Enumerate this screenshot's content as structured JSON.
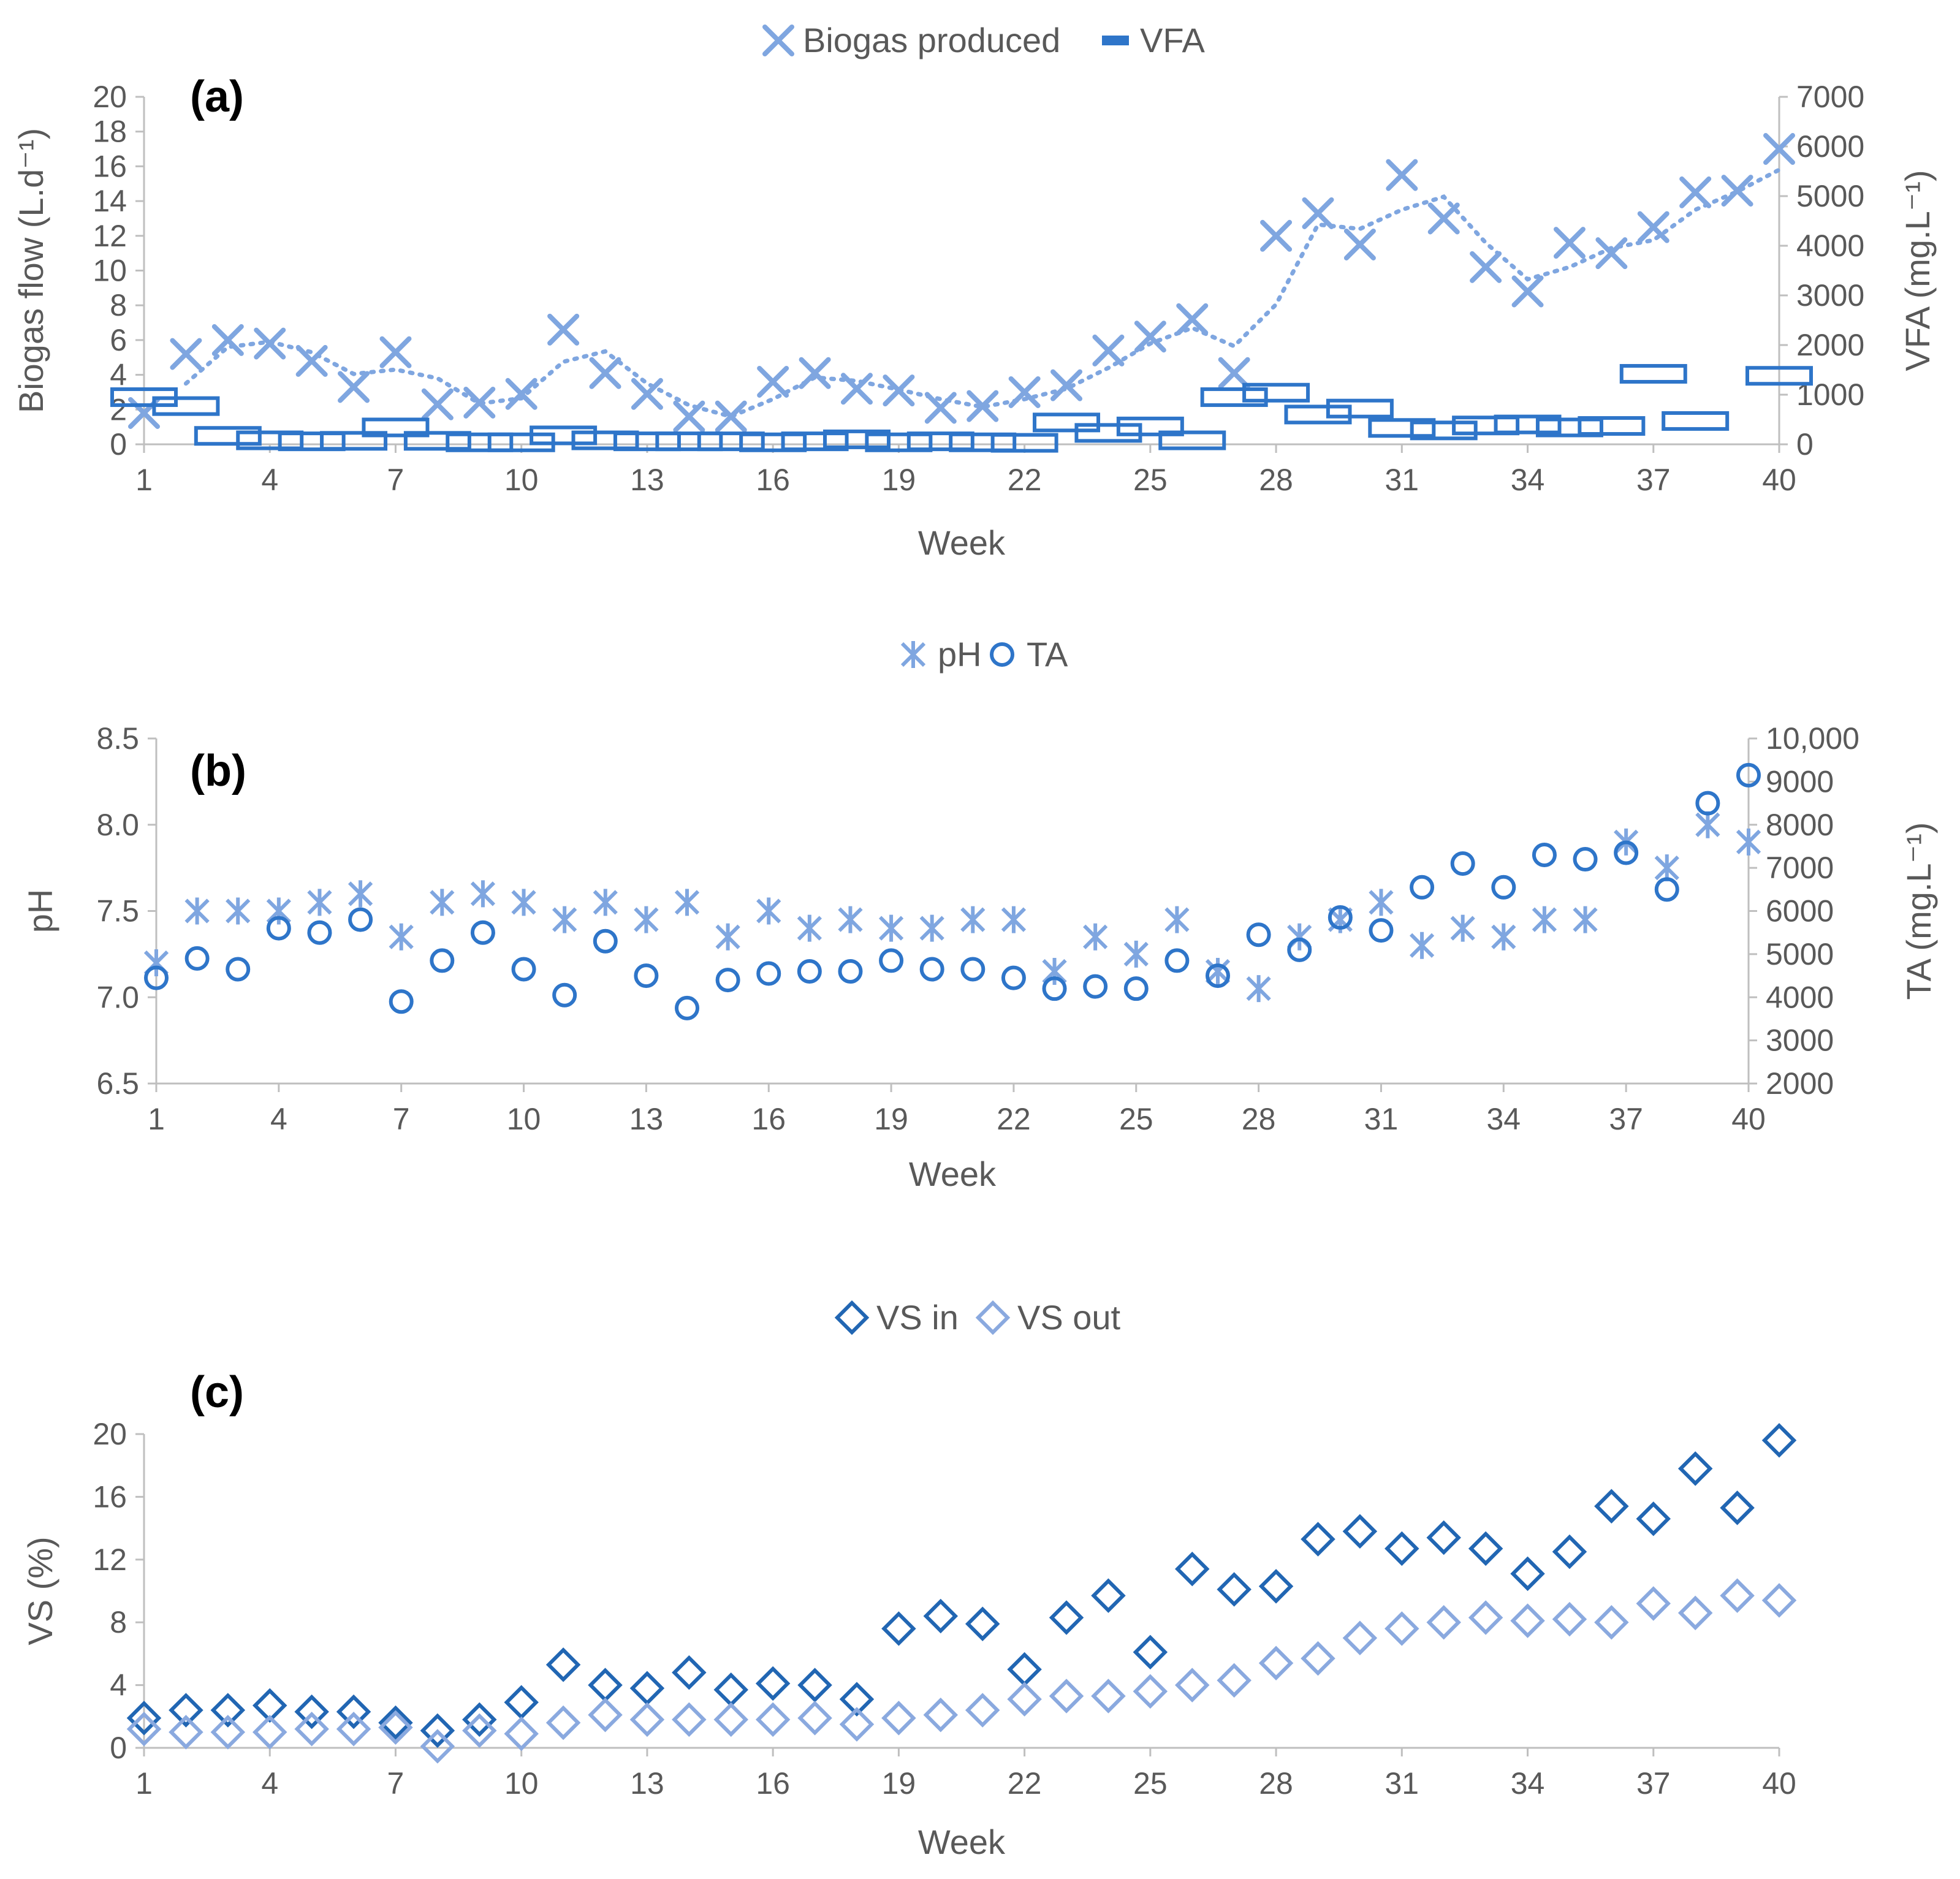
{
  "figure": {
    "colors": {
      "dark": "#2e75c9",
      "light": "#7fa6e0",
      "vs_in": "#2166b3",
      "vs_out": "#8aa9df"
    }
  },
  "chart_data": [
    {
      "type": "scatter",
      "panel_label": "(a)",
      "xlabel": "Week",
      "ylabel": "Biogas flow (L.d⁻¹)",
      "y2label": "VFA (mg.L⁻¹)",
      "xlim": [
        1,
        40
      ],
      "xticks": [
        "1",
        "4",
        "7",
        "10",
        "13",
        "16",
        "19",
        "22",
        "25",
        "28",
        "31",
        "34",
        "37",
        "40"
      ],
      "ylim": [
        0,
        20
      ],
      "yticks": [
        "0",
        "2",
        "4",
        "6",
        "8",
        "10",
        "12",
        "14",
        "16",
        "18",
        "20"
      ],
      "y2lim": [
        0,
        7000
      ],
      "y2ticks": [
        "0",
        "1000",
        "2000",
        "3000",
        "4000",
        "5000",
        "6000",
        "7000"
      ],
      "legend": [
        "Biogas produced",
        "VFA"
      ],
      "trendline": "2-period moving average (dotted) on Biogas produced",
      "series": [
        {
          "name": "Biogas produced",
          "axis": "left",
          "marker": "x",
          "x": [
            1,
            2,
            3,
            4,
            5,
            6,
            7,
            8,
            9,
            10,
            11,
            12,
            13,
            14,
            15,
            16,
            17,
            18,
            19,
            20,
            21,
            22,
            23,
            24,
            25,
            26,
            27,
            28,
            29,
            30,
            31,
            32,
            33,
            34,
            35,
            36,
            37,
            38,
            39,
            40
          ],
          "values": [
            1.8,
            5.2,
            6.0,
            5.8,
            4.8,
            3.3,
            5.3,
            2.3,
            2.4,
            2.9,
            6.6,
            4.1,
            2.9,
            1.6,
            1.6,
            3.6,
            4.1,
            3.2,
            3.1,
            2.1,
            2.2,
            3.0,
            3.4,
            5.4,
            6.2,
            7.2,
            4.1,
            12.0,
            13.3,
            11.5,
            15.5,
            13.0,
            10.2,
            8.8,
            11.6,
            11.0,
            12.5,
            14.5,
            14.6,
            17.0
          ]
        },
        {
          "name": "VFA",
          "axis": "right",
          "marker": "dash",
          "x": [
            1,
            2,
            3,
            4,
            5,
            6,
            7,
            8,
            9,
            10,
            11,
            12,
            13,
            14,
            15,
            16,
            17,
            18,
            19,
            20,
            21,
            22,
            23,
            24,
            25,
            26,
            27,
            28,
            29,
            30,
            31,
            32,
            33,
            34,
            35,
            36,
            37,
            38,
            39,
            40
          ],
          "values": [
            950,
            770,
            170,
            80,
            60,
            70,
            340,
            70,
            40,
            40,
            180,
            80,
            60,
            60,
            60,
            40,
            60,
            100,
            40,
            60,
            40,
            30,
            440,
            230,
            360,
            80,
            950,
            1040,
            600,
            720,
            330,
            280,
            380,
            400,
            340,
            370,
            1420,
            470,
            null,
            1380
          ]
        }
      ]
    },
    {
      "type": "scatter",
      "panel_label": "(b)",
      "xlabel": "Week",
      "ylabel": "pH",
      "y2label": "TA (mg.L⁻¹)",
      "xlim": [
        1,
        40
      ],
      "xticks": [
        "1",
        "4",
        "7",
        "10",
        "13",
        "16",
        "19",
        "22",
        "25",
        "28",
        "31",
        "34",
        "37",
        "40"
      ],
      "ylim": [
        6.5,
        8.5
      ],
      "yticks": [
        "6.5",
        "7.0",
        "7.5",
        "8.0",
        "8.5"
      ],
      "y2lim": [
        2000,
        10000
      ],
      "y2ticks": [
        "2000",
        "3000",
        "4000",
        "5000",
        "6000",
        "7000",
        "8000",
        "9000",
        "10,000"
      ],
      "legend": [
        "pH",
        "TA"
      ],
      "series": [
        {
          "name": "pH",
          "axis": "left",
          "marker": "asterisk",
          "x": [
            1,
            2,
            3,
            4,
            5,
            6,
            7,
            8,
            9,
            10,
            11,
            12,
            13,
            14,
            15,
            16,
            17,
            18,
            19,
            20,
            21,
            22,
            23,
            24,
            25,
            26,
            27,
            28,
            29,
            30,
            31,
            32,
            33,
            34,
            35,
            36,
            37,
            38,
            39,
            40
          ],
          "values": [
            7.2,
            7.5,
            7.5,
            7.5,
            7.55,
            7.6,
            7.35,
            7.55,
            7.6,
            7.55,
            7.45,
            7.55,
            7.45,
            7.55,
            7.35,
            7.5,
            7.4,
            7.45,
            7.4,
            7.4,
            7.45,
            7.45,
            7.15,
            7.35,
            7.25,
            7.45,
            7.15,
            7.05,
            7.35,
            7.45,
            7.55,
            7.3,
            7.4,
            7.35,
            7.45,
            7.45,
            7.9,
            7.75,
            8.0,
            7.9
          ]
        },
        {
          "name": "TA",
          "axis": "right",
          "marker": "circle",
          "x": [
            1,
            2,
            3,
            4,
            5,
            6,
            7,
            8,
            9,
            10,
            11,
            12,
            13,
            14,
            15,
            16,
            17,
            18,
            19,
            20,
            21,
            22,
            23,
            24,
            25,
            26,
            27,
            28,
            29,
            30,
            31,
            32,
            33,
            34,
            35,
            36,
            37,
            38,
            39,
            40
          ],
          "values": [
            4450,
            4900,
            4650,
            5600,
            5500,
            5800,
            3900,
            4850,
            5500,
            4650,
            4050,
            5300,
            4500,
            3750,
            4400,
            4550,
            4600,
            4600,
            4850,
            4650,
            4650,
            4450,
            4200,
            4250,
            4200,
            4850,
            4500,
            5450,
            5100,
            5850,
            5550,
            6550,
            7100,
            6550,
            7300,
            7200,
            7350,
            6500,
            8500,
            9150
          ]
        }
      ]
    },
    {
      "type": "scatter",
      "panel_label": "(c)",
      "xlabel": "Week",
      "ylabel": "VS (%)",
      "xlim": [
        1,
        40
      ],
      "xticks": [
        "1",
        "4",
        "7",
        "10",
        "13",
        "16",
        "19",
        "22",
        "25",
        "28",
        "31",
        "34",
        "37",
        "40"
      ],
      "ylim": [
        0,
        20
      ],
      "yticks": [
        "0",
        "4",
        "8",
        "12",
        "16",
        "20"
      ],
      "legend": [
        "VS in",
        "VS out"
      ],
      "series": [
        {
          "name": "VS in",
          "marker": "diamond",
          "x": [
            1,
            2,
            3,
            4,
            5,
            6,
            7,
            8,
            9,
            10,
            11,
            12,
            13,
            14,
            15,
            16,
            17,
            18,
            19,
            20,
            21,
            22,
            23,
            24,
            25,
            26,
            27,
            28,
            29,
            30,
            31,
            32,
            33,
            34,
            35,
            36,
            37,
            38,
            39,
            40
          ],
          "values": [
            1.9,
            2.4,
            2.4,
            2.7,
            2.3,
            2.3,
            1.6,
            1.1,
            1.8,
            2.9,
            5.3,
            4.0,
            3.8,
            4.8,
            3.7,
            4.1,
            4.0,
            3.1,
            7.6,
            8.4,
            7.9,
            5.0,
            8.3,
            9.7,
            6.1,
            11.4,
            10.1,
            10.3,
            13.3,
            13.8,
            12.7,
            13.4,
            12.7,
            11.1,
            12.5,
            15.4,
            14.6,
            17.8,
            15.3,
            19.6
          ]
        },
        {
          "name": "VS out",
          "marker": "diamond",
          "x": [
            1,
            2,
            3,
            4,
            5,
            6,
            7,
            8,
            9,
            10,
            11,
            12,
            13,
            14,
            15,
            16,
            17,
            18,
            19,
            20,
            21,
            22,
            23,
            24,
            25,
            26,
            27,
            28,
            29,
            30,
            31,
            32,
            33,
            34,
            35,
            36,
            37,
            38,
            39,
            40
          ],
          "values": [
            1.2,
            1.0,
            1.0,
            1.0,
            1.2,
            1.2,
            1.3,
            0.1,
            1.1,
            0.9,
            1.6,
            2.1,
            1.8,
            1.8,
            1.8,
            1.8,
            1.9,
            1.5,
            1.9,
            2.1,
            2.4,
            3.1,
            3.3,
            3.3,
            3.6,
            4.0,
            4.3,
            5.4,
            5.7,
            7.0,
            7.6,
            8.0,
            8.3,
            8.1,
            8.2,
            8.0,
            9.2,
            8.6,
            9.7,
            9.4
          ]
        }
      ]
    }
  ]
}
